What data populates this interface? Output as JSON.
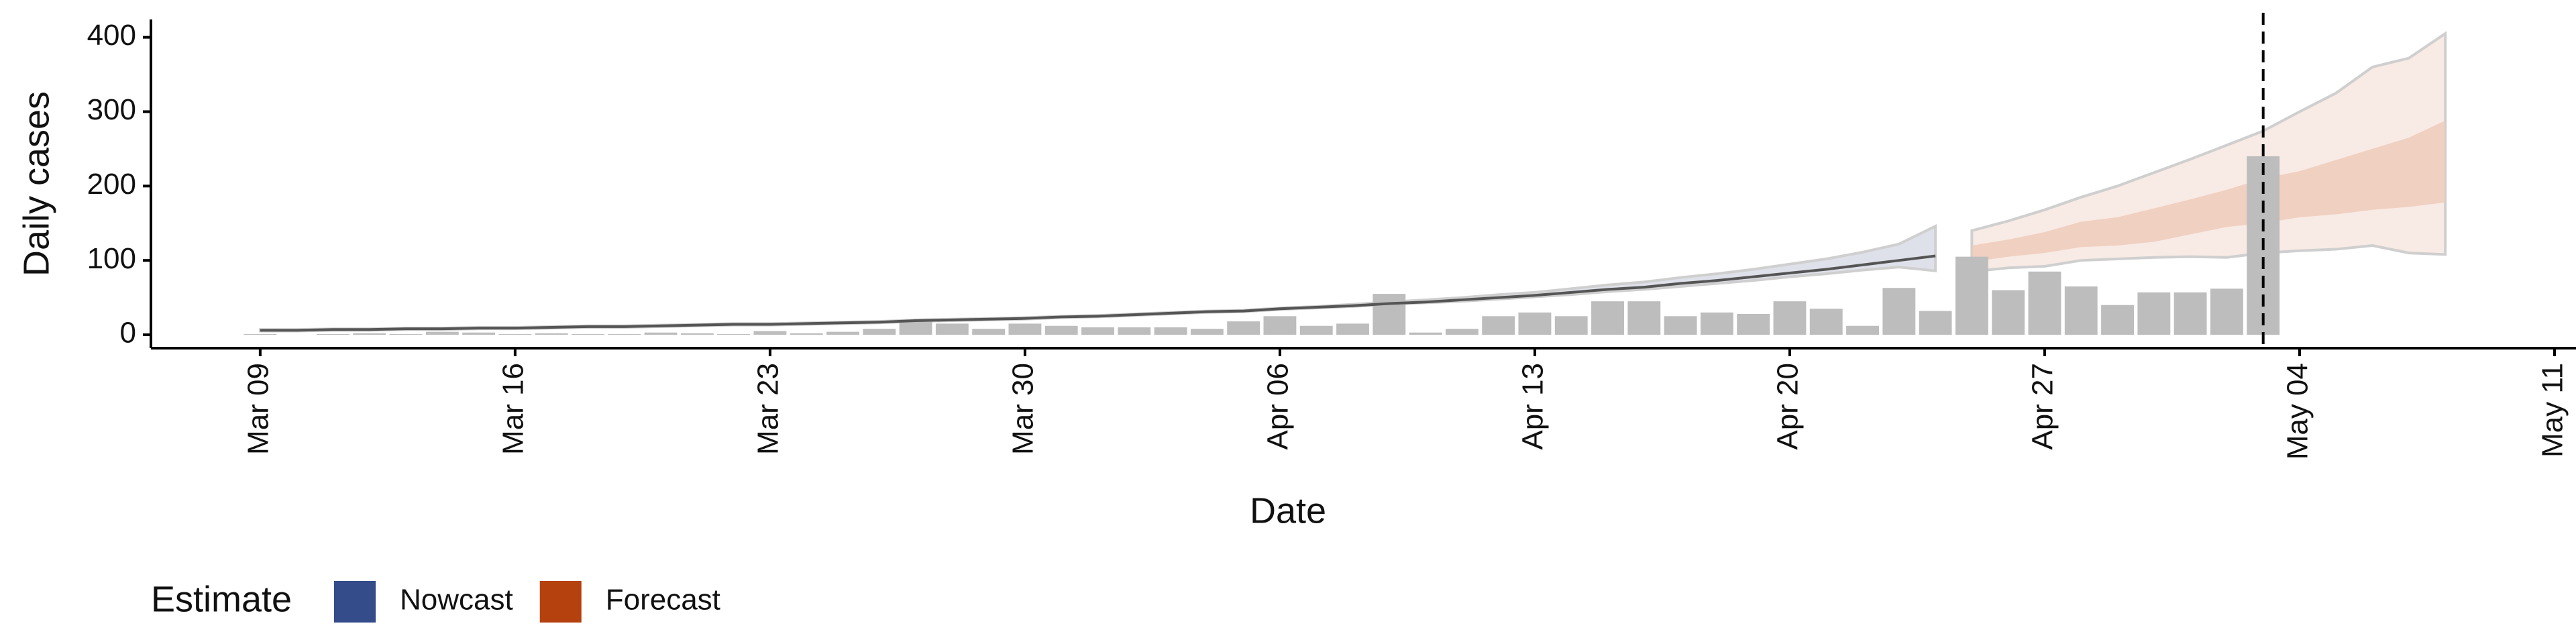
{
  "chart_data": {
    "type": "nowcast",
    "y_label": "Daily cases",
    "x_label": "Date",
    "legend_title": "Estimate",
    "xlim": [
      "Mar 06",
      "May 11"
    ],
    "xticks": [
      "Mar 09",
      "Mar 16",
      "Mar 23",
      "Mar 30",
      "Apr 06",
      "Apr 13",
      "Apr 20",
      "Apr 27",
      "May 04",
      "May 11"
    ],
    "ylim": [
      -18,
      424
    ],
    "yticks": [
      0,
      100,
      200,
      300,
      400
    ],
    "vline": "May 03",
    "bars": {
      "color": "#bdbdbd",
      "x": [
        "Mar 09",
        "Mar 10",
        "Mar 11",
        "Mar 12",
        "Mar 13",
        "Mar 14",
        "Mar 15",
        "Mar 16",
        "Mar 17",
        "Mar 18",
        "Mar 19",
        "Mar 20",
        "Mar 21",
        "Mar 22",
        "Mar 23",
        "Mar 24",
        "Mar 25",
        "Mar 26",
        "Mar 27",
        "Mar 28",
        "Mar 29",
        "Mar 30",
        "Mar 31",
        "Apr 01",
        "Apr 02",
        "Apr 03",
        "Apr 04",
        "Apr 05",
        "Apr 06",
        "Apr 07",
        "Apr 08",
        "Apr 09",
        "Apr 10",
        "Apr 11",
        "Apr 12",
        "Apr 13",
        "Apr 14",
        "Apr 15",
        "Apr 16",
        "Apr 17",
        "Apr 18",
        "Apr 19",
        "Apr 20",
        "Apr 21",
        "Apr 22",
        "Apr 23",
        "Apr 24",
        "Apr 25",
        "Apr 26",
        "Apr 27",
        "Apr 28",
        "Apr 29",
        "Apr 30",
        "May 01",
        "May 02",
        "May 03"
      ],
      "values": [
        1,
        0,
        1,
        2,
        1,
        4,
        3,
        1,
        2,
        1,
        1,
        3,
        2,
        1,
        5,
        2,
        4,
        8,
        20,
        15,
        8,
        15,
        12,
        10,
        10,
        10,
        8,
        18,
        25,
        12,
        15,
        55,
        3,
        8,
        25,
        30,
        25,
        45,
        45,
        25,
        30,
        28,
        45,
        35,
        12,
        63,
        32,
        105,
        60,
        85,
        65,
        40,
        57,
        57,
        62,
        240
      ]
    },
    "series": [
      {
        "name": "Nowcast",
        "color": "#354c8a",
        "line_color": "#555555",
        "band_colors": [
          "#d9dce6"
        ],
        "x": [
          "Mar 09",
          "Mar 10",
          "Mar 11",
          "Mar 12",
          "Mar 13",
          "Mar 14",
          "Mar 15",
          "Mar 16",
          "Mar 17",
          "Mar 18",
          "Mar 19",
          "Mar 20",
          "Mar 21",
          "Mar 22",
          "Mar 23",
          "Mar 24",
          "Mar 25",
          "Mar 26",
          "Mar 27",
          "Mar 28",
          "Mar 29",
          "Mar 30",
          "Mar 31",
          "Apr 01",
          "Apr 02",
          "Apr 03",
          "Apr 04",
          "Apr 05",
          "Apr 06",
          "Apr 07",
          "Apr 08",
          "Apr 09",
          "Apr 10",
          "Apr 11",
          "Apr 12",
          "Apr 13",
          "Apr 14",
          "Apr 15",
          "Apr 16",
          "Apr 17",
          "Apr 18",
          "Apr 19",
          "Apr 20",
          "Apr 21",
          "Apr 22",
          "Apr 23",
          "Apr 24"
        ],
        "median": [
          6,
          6,
          7,
          7,
          8,
          8,
          9,
          9,
          10,
          11,
          11,
          12,
          13,
          14,
          14,
          15,
          16,
          17,
          19,
          20,
          21,
          22,
          24,
          25,
          27,
          29,
          31,
          32,
          35,
          37,
          39,
          42,
          44,
          47,
          50,
          53,
          57,
          61,
          64,
          69,
          73,
          78,
          83,
          88,
          94,
          100,
          106
        ],
        "bands": [
          {
            "lower": [
              5,
              5,
              6,
              6,
              7,
              7,
              8,
              8,
              9,
              10,
              10,
              11,
              12,
              13,
              13,
              14,
              15,
              16,
              18,
              19,
              20,
              21,
              23,
              24,
              26,
              28,
              30,
              31,
              34,
              36,
              38,
              41,
              43,
              45,
              48,
              51,
              54,
              58,
              61,
              65,
              69,
              73,
              78,
              82,
              87,
              91,
              86
            ],
            "upper": [
              7,
              7,
              8,
              8,
              9,
              9,
              10,
              10,
              11,
              12,
              12,
              13,
              14,
              15,
              15,
              16,
              17,
              18,
              20,
              21,
              22,
              23,
              25,
              26,
              28,
              30,
              32,
              33,
              36,
              38,
              41,
              44,
              47,
              50,
              54,
              57,
              62,
              67,
              71,
              77,
              82,
              88,
              95,
              102,
              111,
              122,
              146
            ]
          }
        ]
      },
      {
        "name": "Forecast",
        "color": "#b5410e",
        "band_colors": [
          "#f7e6df",
          "#eecbbb"
        ],
        "x": [
          "Apr 25",
          "Apr 26",
          "Apr 27",
          "Apr 28",
          "Apr 29",
          "Apr 30",
          "May 01",
          "May 02",
          "May 03",
          "May 04",
          "May 05",
          "May 06",
          "May 07",
          "May 08"
        ],
        "bands": [
          {
            "lower": [
              85,
              90,
              92,
              100,
              102,
              104,
              105,
              104,
              110,
              113,
              115,
              120,
              110,
              108
            ],
            "upper": [
              140,
              153,
              168,
              185,
              200,
              218,
              236,
              255,
              274,
              300,
              325,
              360,
              372,
              405
            ]
          },
          {
            "lower": [
              98,
              105,
              110,
              118,
              120,
              125,
              135,
              145,
              150,
              158,
              162,
              168,
              172,
              178
            ],
            "upper": [
              120,
              128,
              138,
              152,
              158,
              170,
              182,
              195,
              210,
              220,
              235,
              250,
              265,
              288
            ]
          }
        ]
      }
    ]
  }
}
